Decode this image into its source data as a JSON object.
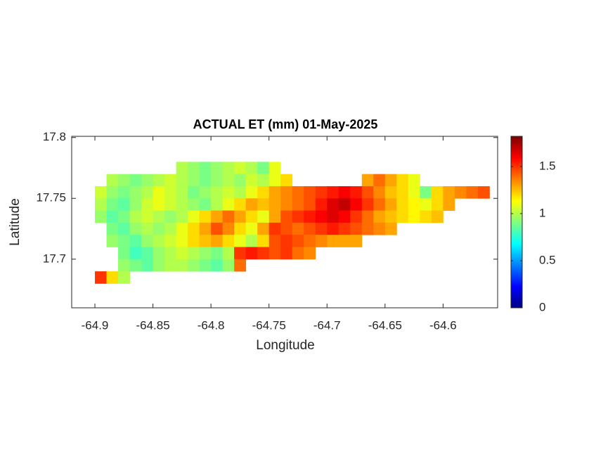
{
  "chart_data": {
    "type": "heatmap",
    "title": "ACTUAL ET (mm) 01-May-2025",
    "xlabel": "Longitude",
    "ylabel": "Latitude",
    "xlim": [
      -64.92,
      -64.553
    ],
    "ylim": [
      17.66,
      17.801
    ],
    "xticks": [
      -64.9,
      -64.85,
      -64.8,
      -64.75,
      -64.7,
      -64.65,
      -64.6
    ],
    "yticks": [
      17.7,
      17.75,
      17.8
    ],
    "clim": [
      0,
      1.82
    ],
    "cticks": [
      0,
      0.5,
      1,
      1.5
    ],
    "colormap": "jet",
    "lon": [
      -64.895,
      -64.885,
      -64.875,
      -64.865,
      -64.855,
      -64.845,
      -64.835,
      -64.825,
      -64.815,
      -64.805,
      -64.795,
      -64.785,
      -64.775,
      -64.765,
      -64.755,
      -64.745,
      -64.735,
      -64.725,
      -64.715,
      -64.705,
      -64.695,
      -64.685,
      -64.675,
      -64.665,
      -64.655,
      -64.645,
      -64.635,
      -64.625,
      -64.615,
      -64.605,
      -64.595,
      -64.585,
      -64.575,
      -64.565
    ],
    "lat": [
      17.775,
      17.765,
      17.755,
      17.745,
      17.735,
      17.725,
      17.715,
      17.705,
      17.695,
      17.685
    ],
    "z": [
      [
        null,
        null,
        null,
        null,
        null,
        null,
        null,
        1.0,
        0.95,
        0.9,
        0.95,
        1.0,
        1.05,
        1.0,
        0.9,
        1.1,
        null,
        null,
        null,
        null,
        null,
        null,
        null,
        null,
        null,
        null,
        null,
        null,
        null,
        null,
        null,
        null,
        null,
        null
      ],
      [
        null,
        1.0,
        0.95,
        0.9,
        0.95,
        1.0,
        1.05,
        1.0,
        0.95,
        0.9,
        0.95,
        1.0,
        0.95,
        1.05,
        1.0,
        1.1,
        1.2,
        null,
        null,
        null,
        null,
        null,
        null,
        1.3,
        1.4,
        1.3,
        1.2,
        1.1,
        null,
        null,
        null,
        null,
        null,
        null
      ],
      [
        1.05,
        0.95,
        0.9,
        0.95,
        1.0,
        1.1,
        1.05,
        1.0,
        0.9,
        0.95,
        1.0,
        1.05,
        1.0,
        1.1,
        1.2,
        1.3,
        1.35,
        1.4,
        1.45,
        1.5,
        1.55,
        1.6,
        1.55,
        1.45,
        1.35,
        1.25,
        1.2,
        1.1,
        0.9,
        1.2,
        1.3,
        1.35,
        1.4,
        1.45
      ],
      [
        1.0,
        0.9,
        0.85,
        0.95,
        1.05,
        1.1,
        1.05,
        1.0,
        0.95,
        0.9,
        1.0,
        1.1,
        1.2,
        1.3,
        1.25,
        1.3,
        1.35,
        1.4,
        1.45,
        1.55,
        1.65,
        1.7,
        1.6,
        1.5,
        1.4,
        1.3,
        1.2,
        1.15,
        1.1,
        1.2,
        1.3,
        null,
        null,
        null
      ],
      [
        0.95,
        0.85,
        0.9,
        1.0,
        1.05,
        1.0,
        0.95,
        1.0,
        1.1,
        1.2,
        1.3,
        1.4,
        1.3,
        1.2,
        1.1,
        1.3,
        1.45,
        1.5,
        1.55,
        1.6,
        1.65,
        1.6,
        1.5,
        1.4,
        1.3,
        1.25,
        1.2,
        1.15,
        1.2,
        1.25,
        null,
        null,
        null,
        null
      ],
      [
        null,
        0.9,
        0.85,
        0.95,
        1.0,
        0.95,
        1.0,
        1.1,
        1.2,
        1.3,
        1.45,
        1.35,
        1.2,
        1.1,
        1.3,
        1.5,
        1.45,
        1.4,
        1.45,
        1.5,
        1.55,
        1.5,
        1.45,
        1.4,
        1.35,
        1.3,
        null,
        null,
        null,
        null,
        null,
        null,
        null,
        null
      ],
      [
        null,
        0.95,
        0.9,
        0.85,
        0.95,
        1.0,
        1.05,
        1.1,
        1.2,
        1.25,
        1.3,
        1.2,
        1.1,
        1.0,
        1.2,
        1.45,
        1.5,
        1.45,
        1.4,
        1.35,
        1.3,
        1.3,
        1.3,
        null,
        null,
        null,
        null,
        null,
        null,
        null,
        null,
        null,
        null,
        null
      ],
      [
        null,
        null,
        0.9,
        0.8,
        0.85,
        0.95,
        1.0,
        1.05,
        1.0,
        0.95,
        0.9,
        1.0,
        1.5,
        1.55,
        1.5,
        1.45,
        1.5,
        1.4,
        1.35,
        null,
        null,
        null,
        null,
        null,
        null,
        null,
        null,
        null,
        null,
        null,
        null,
        null,
        null,
        null
      ],
      [
        null,
        null,
        0.95,
        0.9,
        0.85,
        0.95,
        1.0,
        1.0,
        0.95,
        0.9,
        0.85,
        0.95,
        1.4,
        null,
        null,
        null,
        null,
        null,
        null,
        null,
        null,
        null,
        null,
        null,
        null,
        null,
        null,
        null,
        null,
        null,
        null,
        null,
        null,
        null
      ],
      [
        1.5,
        1.2,
        1.0,
        null,
        null,
        null,
        null,
        null,
        null,
        null,
        null,
        null,
        null,
        null,
        null,
        null,
        null,
        null,
        null,
        null,
        null,
        null,
        null,
        null,
        null,
        null,
        null,
        null,
        null,
        null,
        null,
        null,
        null,
        null
      ]
    ]
  }
}
